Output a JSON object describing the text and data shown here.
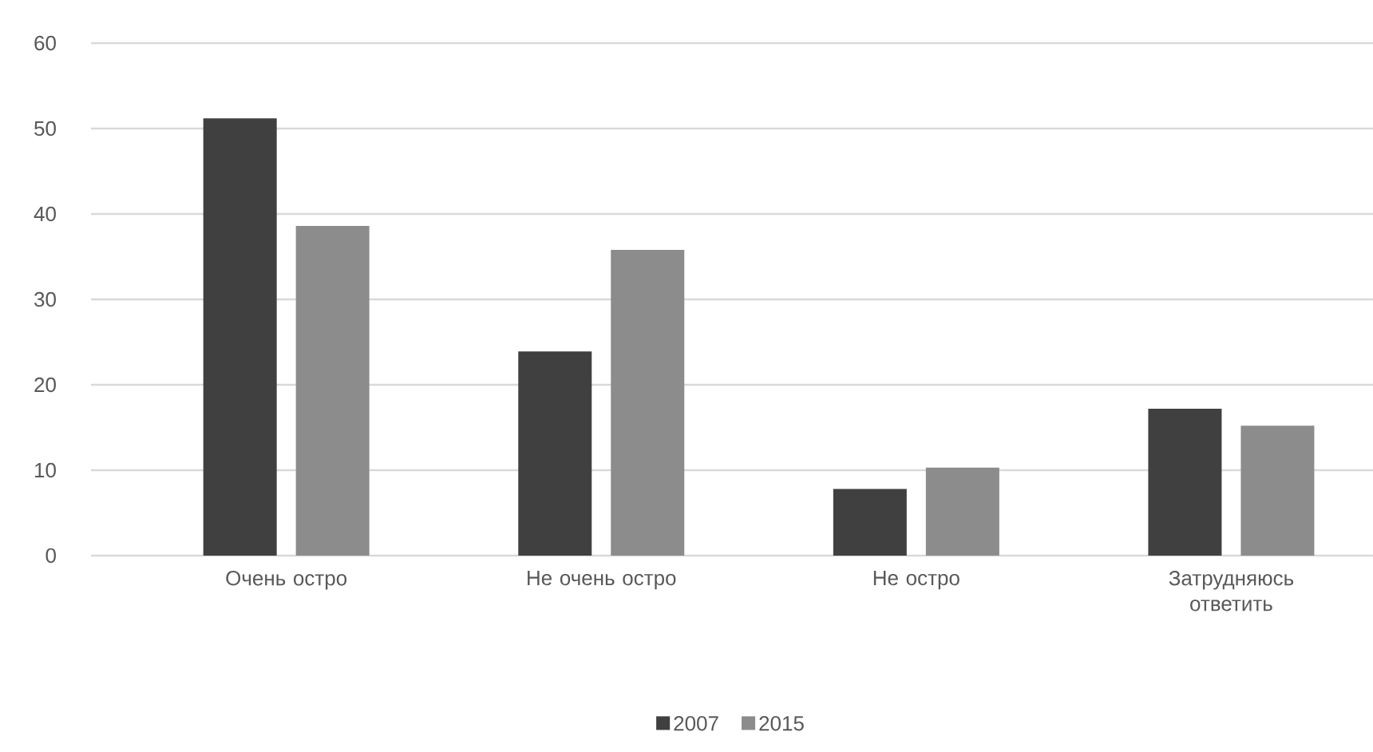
{
  "chart_data": {
    "type": "bar",
    "categories": [
      "Очень остро",
      "Не очень остро",
      "Не остро",
      "Затрудняюсь ответить"
    ],
    "series": [
      {
        "name": "2007",
        "color": "#404040",
        "values": [
          51.2,
          23.9,
          7.8,
          17.2
        ]
      },
      {
        "name": "2015",
        "color": "#8c8c8c",
        "values": [
          38.6,
          35.8,
          10.3,
          15.2
        ]
      }
    ],
    "ylim": [
      0,
      60
    ],
    "yticks": [
      0,
      10,
      20,
      30,
      40,
      50,
      60
    ],
    "grid": "y",
    "legend": "bottom"
  }
}
